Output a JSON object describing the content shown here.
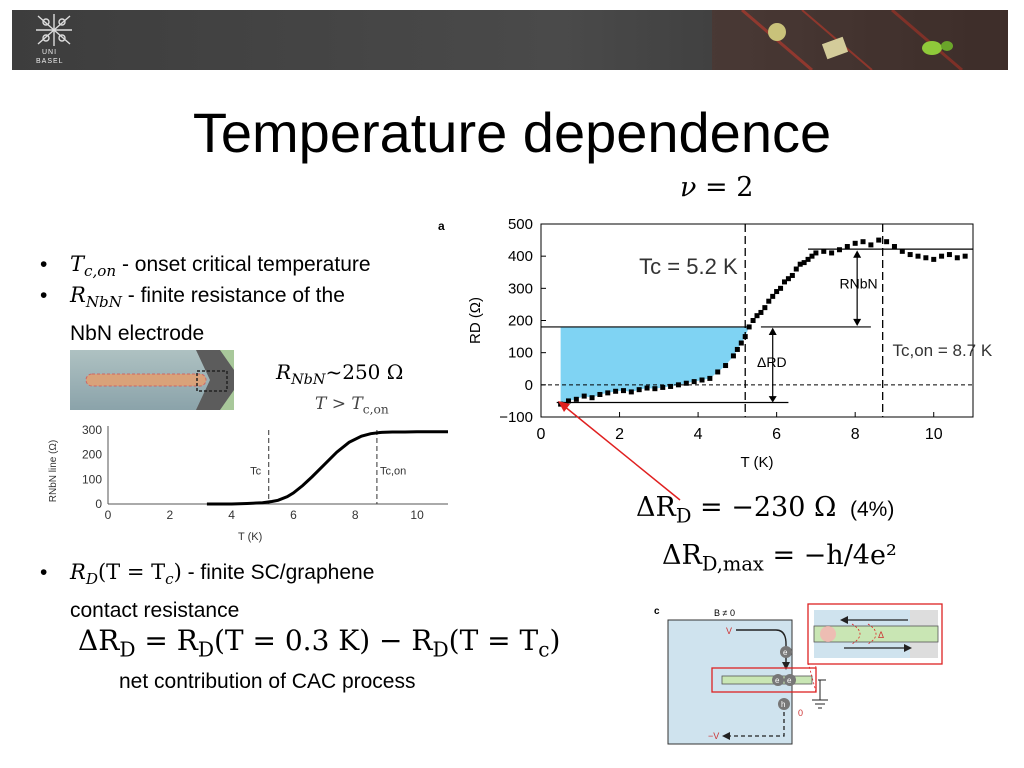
{
  "header": {
    "logo_line1": "UNI",
    "logo_line2": "BASEL"
  },
  "title": "Temperature dependence",
  "bullets": [
    {
      "sym": "T",
      "sub": "c,on",
      "text": " - onset critical temperature"
    },
    {
      "sym": "R",
      "sub": "NbN",
      "text": " - finite resistance of the",
      "text2": "NbN electrode"
    },
    {
      "sym": "R",
      "sub": "D",
      "mid": "(T = T",
      "sub2": "c",
      "end": ")",
      "text": " - finite SC/graphene",
      "text2": "contact resistance"
    }
  ],
  "rnbn_label": {
    "sym": "R",
    "sub": "NbN",
    "value": "~250 Ω"
  },
  "t_cond": {
    "lhs": "T > T",
    "sub": "c,on"
  },
  "nu_label": {
    "sym": "ν",
    "value": " = 2"
  },
  "delta_rd": {
    "text": "ΔR",
    "sub": "D",
    "value": " = −230 Ω",
    "percent": "(4%)"
  },
  "delta_rd_max": {
    "text": "ΔR",
    "sub": "D,max",
    "value": " = −h/4e²"
  },
  "eq_main": {
    "p1": "ΔR",
    "s1": "D",
    "p2": " = R",
    "s2": "D",
    "p3": "(T = 0.3 K) − R",
    "s3": "D",
    "p4": "(T = T",
    "s4": "c",
    "p5": ")"
  },
  "net_contribution": "net contribution of CAC process",
  "chart_data": [
    {
      "type": "scatter",
      "panel_label": "a",
      "title": "",
      "xlabel": "T (K)",
      "ylabel": "RD (Ω)",
      "xlim": [
        0,
        11
      ],
      "ylim": [
        -100,
        500
      ],
      "xticks": [
        "0",
        "2",
        "4",
        "6",
        "8",
        "10"
      ],
      "yticks": [
        "−100",
        "0",
        "100",
        "200",
        "300",
        "400",
        "500"
      ],
      "x": [
        0.5,
        0.7,
        0.9,
        1.1,
        1.3,
        1.5,
        1.7,
        1.9,
        2.1,
        2.3,
        2.5,
        2.7,
        2.9,
        3.1,
        3.3,
        3.5,
        3.7,
        3.9,
        4.1,
        4.3,
        4.5,
        4.7,
        4.9,
        5.0,
        5.1,
        5.2,
        5.3,
        5.4,
        5.5,
        5.6,
        5.7,
        5.8,
        5.9,
        6.0,
        6.1,
        6.2,
        6.3,
        6.4,
        6.5,
        6.6,
        6.7,
        6.8,
        6.9,
        7.0,
        7.2,
        7.4,
        7.6,
        7.8,
        8.0,
        8.2,
        8.4,
        8.6,
        8.8,
        9.0,
        9.2,
        9.4,
        9.6,
        9.8,
        10.0,
        10.2,
        10.4,
        10.6,
        10.8
      ],
      "y": [
        -60,
        -50,
        -45,
        -35,
        -40,
        -30,
        -25,
        -20,
        -18,
        -22,
        -15,
        -10,
        -12,
        -8,
        -5,
        0,
        5,
        10,
        15,
        20,
        40,
        60,
        90,
        110,
        130,
        150,
        180,
        200,
        215,
        225,
        240,
        260,
        275,
        290,
        300,
        320,
        330,
        340,
        360,
        375,
        380,
        390,
        400,
        410,
        415,
        410,
        420,
        430,
        440,
        445,
        435,
        450,
        445,
        430,
        415,
        405,
        400,
        395,
        390,
        400,
        405,
        395,
        400
      ],
      "annotations": [
        "Tc = 5.2 K",
        "RNbN",
        "Tc,on = 8.7 K",
        "ΔRD"
      ]
    },
    {
      "type": "line",
      "xlabel": "T (K)",
      "ylabel": "RNbN line (Ω)",
      "xlim": [
        0,
        11
      ],
      "ylim": [
        0,
        300
      ],
      "xticks": [
        "0",
        "2",
        "4",
        "6",
        "8",
        "10"
      ],
      "yticks": [
        "0",
        "100",
        "200",
        "300"
      ],
      "x": [
        3.2,
        4,
        4.5,
        5,
        5.3,
        5.5,
        5.8,
        6,
        6.3,
        6.6,
        7,
        7.4,
        7.8,
        8.2,
        8.5,
        8.8,
        9.2,
        9.6,
        10,
        10.5,
        11
      ],
      "y": [
        0,
        0,
        2,
        5,
        10,
        15,
        30,
        45,
        75,
        110,
        160,
        210,
        250,
        275,
        285,
        290,
        292,
        292,
        293,
        293,
        293
      ],
      "annotations": [
        "Tc",
        "Tc,on"
      ]
    },
    {
      "type": "diagram",
      "panel_label": "c",
      "labels": [
        "B ≠ 0",
        "V",
        "e",
        "e",
        "e",
        "h",
        "0",
        "−V",
        "Δ"
      ]
    }
  ]
}
